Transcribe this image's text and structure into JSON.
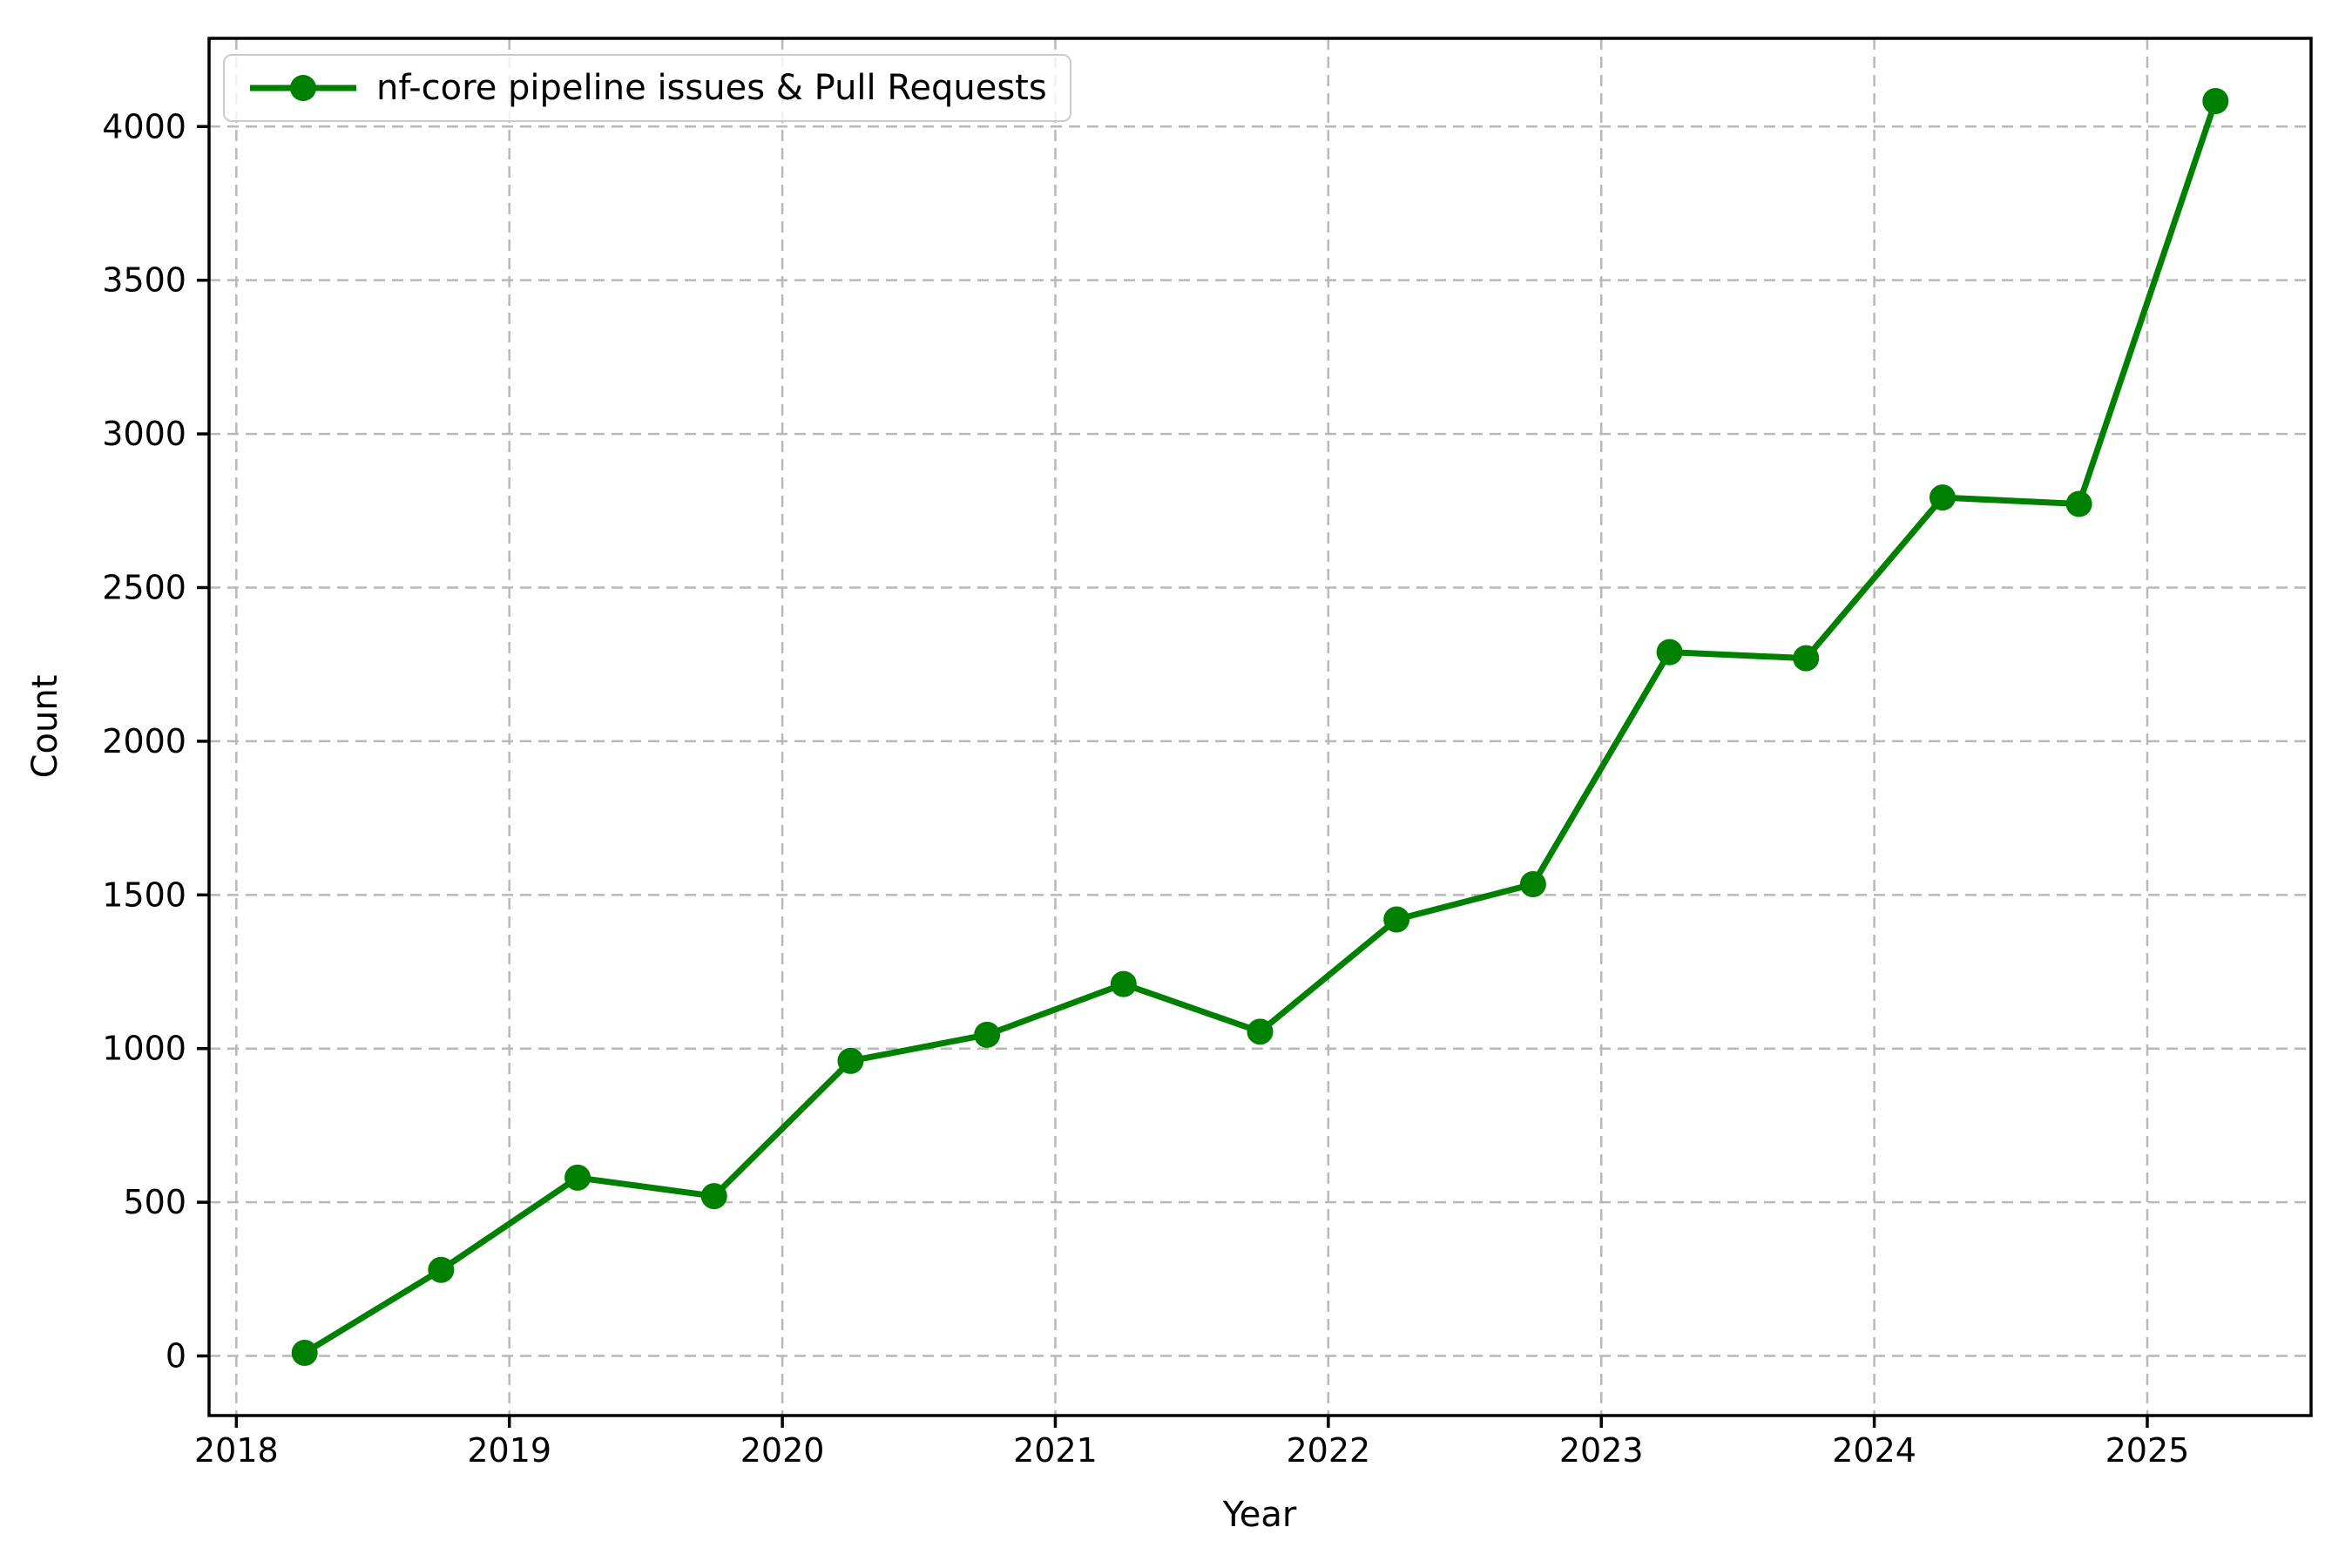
{
  "chart_data": {
    "type": "line",
    "title": "",
    "xlabel": "Year",
    "ylabel": "Count",
    "x": [
      2018.25,
      2018.75,
      2019.25,
      2019.75,
      2020.25,
      2020.75,
      2021.25,
      2021.75,
      2022.25,
      2022.75,
      2023.25,
      2023.75,
      2024.25,
      2024.75,
      2025.25
    ],
    "series": [
      {
        "name": "nf-core pipeline issues & Pull Requests",
        "values": [
          10,
          280,
          580,
          520,
          960,
          1045,
          1210,
          1055,
          1420,
          1535,
          2290,
          2270,
          2793,
          2772,
          4083
        ]
      }
    ],
    "xlim": [
      2017.9,
      2025.6
    ],
    "ylim": [
      -194,
      4287
    ],
    "x_ticks": [
      "2018",
      "2019",
      "2020",
      "2021",
      "2022",
      "2023",
      "2024",
      "2025"
    ],
    "x_tick_values": [
      2018,
      2019,
      2020,
      2021,
      2022,
      2023,
      2024,
      2025
    ],
    "y_ticks": [
      "0",
      "500",
      "1000",
      "1500",
      "2000",
      "2500",
      "3000",
      "3500",
      "4000"
    ],
    "y_tick_values": [
      0,
      500,
      1000,
      1500,
      2000,
      2500,
      3000,
      3500,
      4000
    ],
    "grid": "dashed",
    "legend_position": "upper left",
    "marker": "circle",
    "colors": {
      "line": "#008000",
      "grid": "#b8b8b8",
      "spine": "#000000",
      "text": "#000000",
      "legend_border": "#cbcbcb",
      "legend_bg": "#ffffff"
    }
  }
}
